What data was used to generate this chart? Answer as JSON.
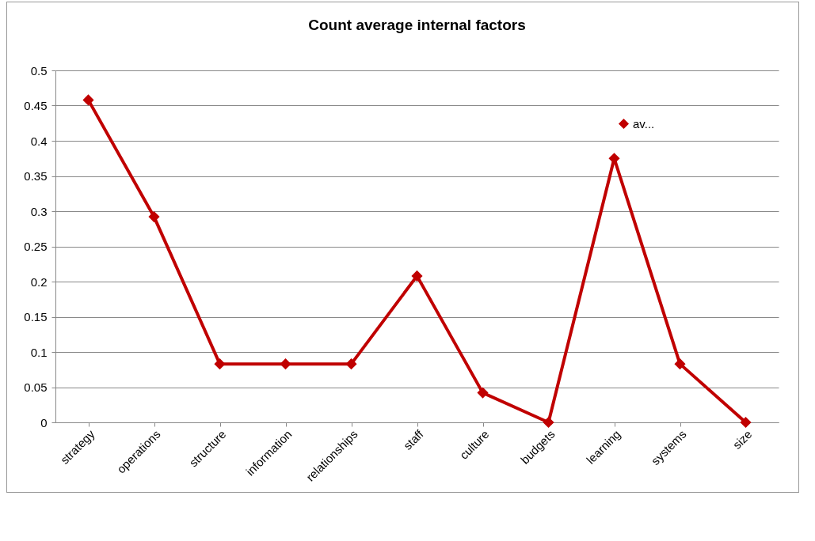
{
  "chart_data": {
    "type": "line",
    "title": "Count  average internal factors",
    "categories": [
      "strategy",
      "operations",
      "structure",
      "information",
      "relationships",
      "staff",
      "culture",
      "budgets",
      "learning",
      "systems",
      "size"
    ],
    "series": [
      {
        "name": "av...",
        "color": "#c00000",
        "values": [
          0.458,
          0.292,
          0.083,
          0.083,
          0.083,
          0.208,
          0.042,
          0,
          0.375,
          0.083,
          0
        ]
      }
    ],
    "ylim": [
      0,
      0.5
    ],
    "yticks": [
      0,
      0.05,
      0.1,
      0.15,
      0.2,
      0.25,
      0.3,
      0.35,
      0.4,
      0.45,
      0.5
    ],
    "grid": "y",
    "legend": "top right",
    "marker": "diamond",
    "line_style": "solid"
  }
}
